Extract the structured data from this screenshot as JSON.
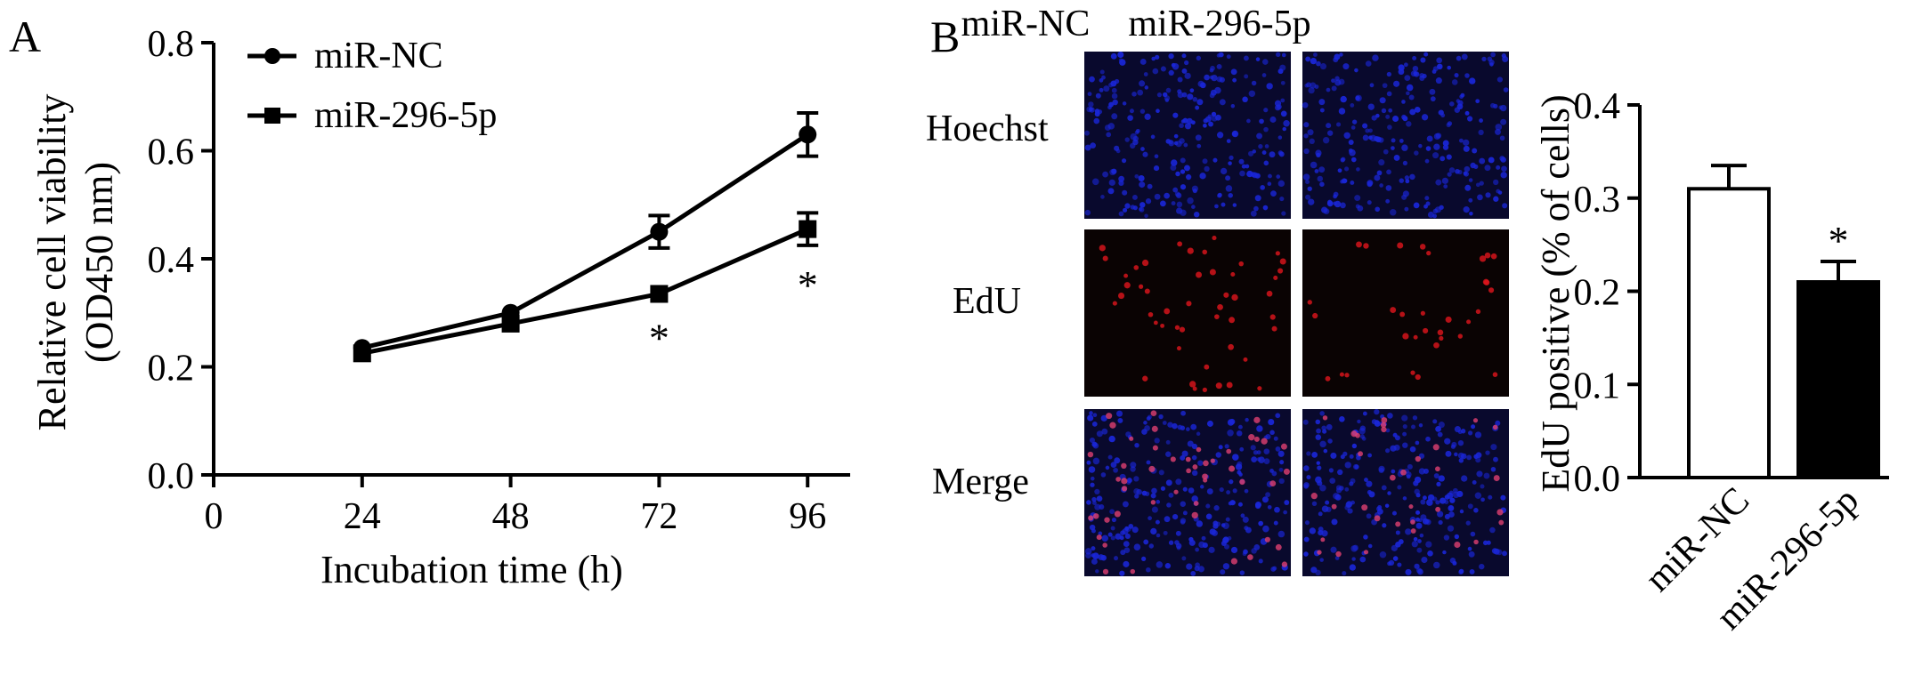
{
  "panel_a_letter": "A",
  "panel_b_letter": "B",
  "micrograph": {
    "columns": [
      "miR-NC",
      "miR-296-5p"
    ],
    "rows": [
      "Hoechst",
      "EdU",
      "Merge"
    ]
  },
  "colors": {
    "hoechst": "#1a26d8",
    "edu": "#e0151d",
    "bar_nc": "#ffffff",
    "bar_296": "#000000"
  },
  "chart_data": [
    {
      "type": "line",
      "xlabel": "Incubation time (h)",
      "ylabel_line1": "Relative cell viability",
      "ylabel_line2": "(OD450 nm)",
      "x_ticks": [
        "0",
        "24",
        "48",
        "72",
        "96"
      ],
      "y_ticks": [
        "0.0",
        "0.2",
        "0.4",
        "0.6",
        "0.8"
      ],
      "xlim": [
        0,
        100
      ],
      "ylim": [
        0,
        0.8
      ],
      "x": [
        24,
        48,
        72,
        96
      ],
      "legend_position": "top-left",
      "series": [
        {
          "name": "miR-NC",
          "marker": "circle",
          "values": [
            0.235,
            0.3,
            0.45,
            0.63
          ],
          "errors": [
            0.008,
            0.008,
            0.03,
            0.04
          ]
        },
        {
          "name": "miR-296-5p",
          "marker": "square",
          "values": [
            0.225,
            0.28,
            0.335,
            0.455
          ],
          "errors": [
            0.008,
            0.008,
            0.008,
            0.03
          ]
        }
      ],
      "annotations": [
        {
          "x": 72,
          "text": "*"
        },
        {
          "x": 96,
          "text": "*"
        }
      ]
    },
    {
      "type": "bar",
      "ylabel": "EdU positive (% of cells)",
      "categories": [
        "miR-NC",
        "miR-296-5p"
      ],
      "values": [
        0.31,
        0.21
      ],
      "errors": [
        0.025,
        0.022
      ],
      "y_ticks": [
        "0.0",
        "0.1",
        "0.2",
        "0.3",
        "0.4"
      ],
      "ylim": [
        0,
        0.4
      ],
      "annotations": [
        {
          "category": "miR-296-5p",
          "text": "*"
        }
      ]
    }
  ]
}
